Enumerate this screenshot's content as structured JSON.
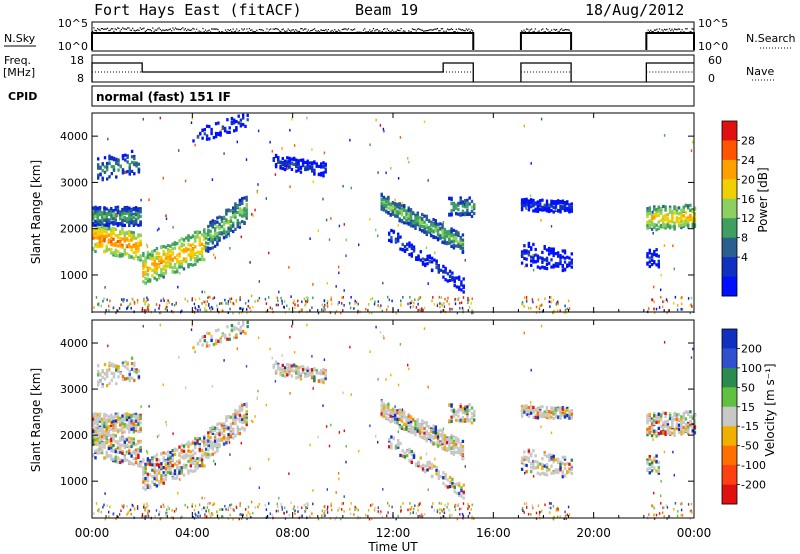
{
  "header": {
    "station": "Fort Hays East (fitACF)",
    "beam": "Beam 19",
    "date": "18/Aug/2012"
  },
  "side_labels": {
    "nsky": "N.Sky",
    "nsearch": "N.Search",
    "freq": "Freq.",
    "mhz": "[MHz]",
    "nave": "Nave",
    "cpid_label": "CPID",
    "cpid_value": "normal (fast) 151 IF"
  },
  "noise_axis": {
    "ticks": [
      "10^5",
      "10^0"
    ]
  },
  "freq_axis": {
    "left_ticks": [
      "18",
      "8"
    ],
    "right_ticks": [
      "60",
      "0"
    ]
  },
  "chart_data": [
    {
      "type": "heatmap",
      "name": "power",
      "ylabel": "Slant Range [km]",
      "xlabel": "",
      "yticks": [
        "4000",
        "3000",
        "2000",
        "1000"
      ],
      "ylim": [
        200,
        4500
      ],
      "colorbar": {
        "label": "Power [dB]",
        "ticks": [
          "28",
          "24",
          "20",
          "16",
          "12",
          "8",
          "4"
        ],
        "colors": [
          "#e01010",
          "#ff5500",
          "#ffa000",
          "#f0d000",
          "#8cd060",
          "#3da060",
          "#2a6090",
          "#1030c0",
          "#0010ff"
        ]
      }
    },
    {
      "type": "heatmap",
      "name": "velocity",
      "ylabel": "Slant Range [km]",
      "xlabel": "Time UT",
      "yticks": [
        "4000",
        "3000",
        "2000",
        "1000"
      ],
      "ylim": [
        200,
        4500
      ],
      "xticks": [
        "00:00",
        "04:00",
        "08:00",
        "12:00",
        "16:00",
        "20:00",
        "00:00"
      ],
      "colorbar": {
        "label": "Velocity [m s⁻¹]",
        "ticks": [
          "200",
          "100",
          "50",
          "15",
          "-15",
          "-50",
          "-100",
          "-200"
        ],
        "colors": [
          "#1030c0",
          "#3050d0",
          "#2a8a50",
          "#60c040",
          "#c8c8c8",
          "#f0b000",
          "#ff7000",
          "#ff4010",
          "#e01010"
        ]
      }
    }
  ]
}
